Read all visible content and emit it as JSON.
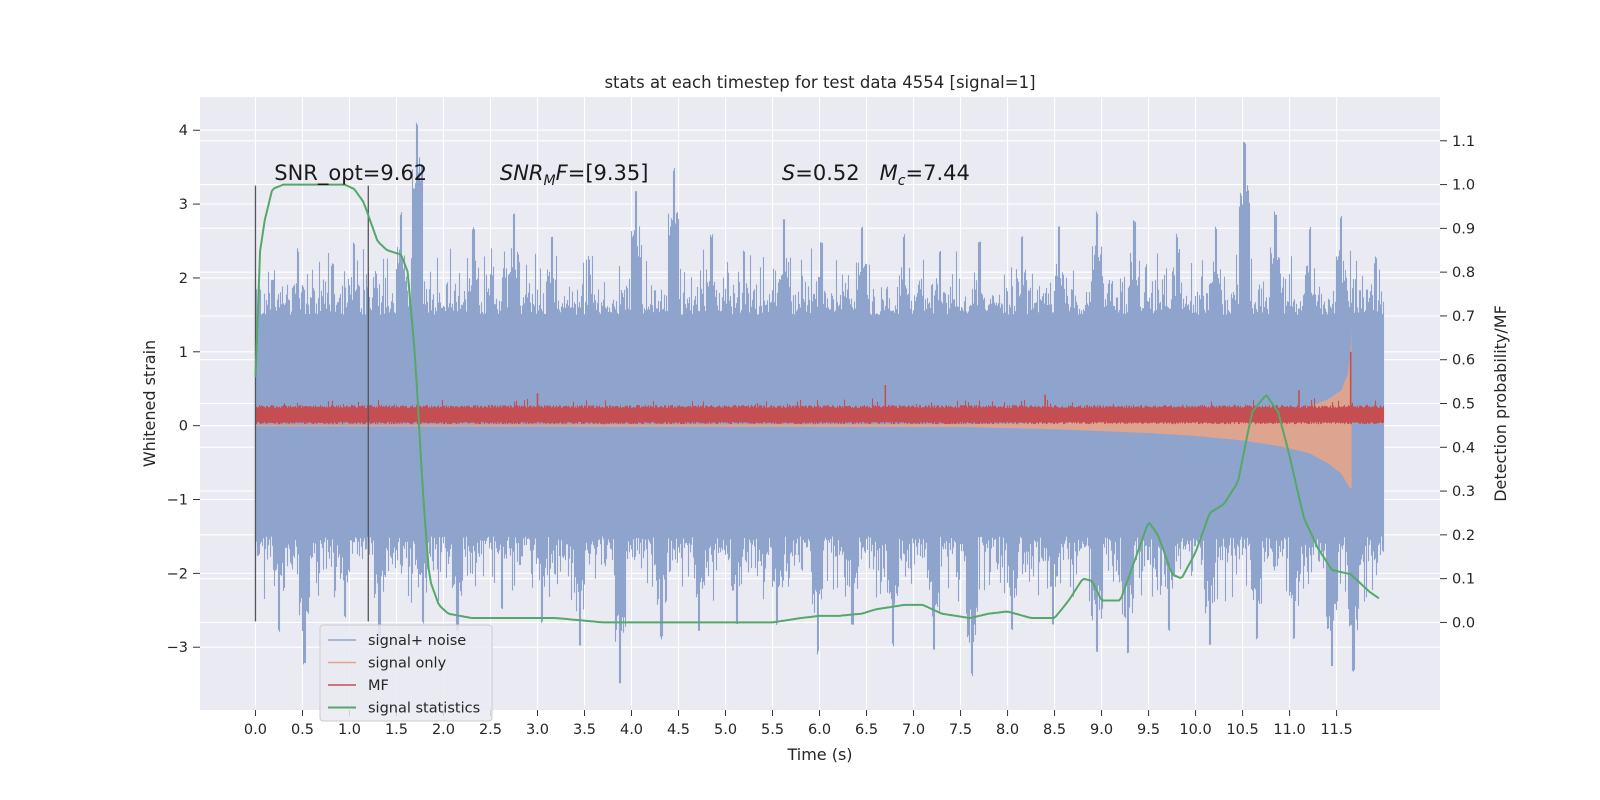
{
  "chart_data": {
    "type": "line",
    "title": "stats at each timestep for test data 4554 [signal=1]",
    "xlabel": "Time (s)",
    "ylabel": "Whitened strain",
    "ylabel_right": "Detection probability/MF",
    "xlim": [
      -0.59,
      12.6
    ],
    "ylim": [
      -3.85,
      4.45
    ],
    "ylim_right": [
      -0.2,
      1.2
    ],
    "x_ticks": [
      "0.0",
      "0.5",
      "1.0",
      "1.5",
      "2.0",
      "2.5",
      "3.0",
      "3.5",
      "4.0",
      "4.5",
      "5.0",
      "5.5",
      "6.0",
      "6.5",
      "7.0",
      "7.5",
      "8.0",
      "8.5",
      "9.0",
      "9.5",
      "10.0",
      "10.5",
      "11.0",
      "11.5"
    ],
    "x_tick_values": [
      0,
      0.5,
      1,
      1.5,
      2,
      2.5,
      3,
      3.5,
      4,
      4.5,
      5,
      5.5,
      6,
      6.5,
      7,
      7.5,
      8,
      8.5,
      9,
      9.5,
      10,
      10.5,
      11,
      11.5
    ],
    "y_ticks": [
      "−3",
      "−2",
      "−1",
      "0",
      "1",
      "2",
      "3",
      "4"
    ],
    "y_tick_values": [
      -3,
      -2,
      -1,
      0,
      1,
      2,
      3,
      4
    ],
    "y_ticks_right": [
      "0.0",
      "0.1",
      "0.2",
      "0.3",
      "0.4",
      "0.5",
      "0.6",
      "0.7",
      "0.8",
      "0.9",
      "1.0",
      "1.1"
    ],
    "y_tick_values_right": [
      0,
      0.1,
      0.2,
      0.3,
      0.4,
      0.5,
      0.6,
      0.7,
      0.8,
      0.9,
      1.0,
      1.1
    ],
    "grid": true,
    "legend_position": "lower-left",
    "annotations": [
      {
        "text": "SNR_opt=9.62",
        "x": 0.2,
        "y_right": 1.01
      },
      {
        "text": "SNR_MF=[9.35]",
        "x": 2.6,
        "y_right": 1.01
      },
      {
        "text": "S=0.52   M_c=7.44",
        "x": 5.6,
        "y_right": 1.01
      }
    ],
    "vlines": [
      {
        "x": 0.0,
        "y_range": [
          -2.65,
          3.25
        ]
      },
      {
        "x": 1.2,
        "y_range": [
          -2.65,
          3.25
        ]
      }
    ],
    "series": [
      {
        "name": "signal+ noise",
        "axis": "left",
        "color": "#8fa4cd",
        "x_range": [
          0,
          12.0
        ],
        "band_typical": [
          -1.5,
          1.5
        ],
        "peak_times": [
          0.18,
          0.45,
          0.82,
          1.05,
          1.28,
          1.55,
          1.72,
          2.32,
          2.75,
          3.15,
          3.55,
          4.05,
          4.45,
          4.85,
          5.2,
          5.62,
          6.02,
          6.45,
          6.9,
          7.28,
          7.7,
          8.15,
          8.55,
          8.95,
          9.35,
          9.8,
          10.22,
          10.52,
          10.85,
          11.22,
          11.55,
          11.92
        ],
        "peak_highs": [
          2.0,
          2.4,
          2.2,
          2.5,
          2.1,
          2.9,
          4.1,
          2.7,
          2.9,
          2.6,
          2.3,
          3.2,
          3.5,
          2.6,
          2.4,
          2.8,
          2.5,
          2.7,
          2.6,
          2.4,
          2.5,
          2.6,
          2.7,
          2.9,
          2.8,
          2.6,
          2.7,
          3.85,
          2.9,
          2.7,
          2.85,
          2.3
        ],
        "dip_times": [
          0.25,
          0.52,
          0.95,
          1.32,
          1.78,
          2.15,
          2.62,
          3.05,
          3.45,
          3.88,
          4.32,
          4.72,
          5.12,
          5.55,
          5.98,
          6.35,
          6.78,
          7.22,
          7.62,
          8.05,
          8.48,
          8.95,
          9.28,
          9.72,
          10.15,
          10.65,
          11.05,
          11.45,
          11.68
        ],
        "dip_lows": [
          -2.8,
          -3.25,
          -2.6,
          -2.9,
          -2.7,
          -2.8,
          -2.5,
          -2.7,
          -3.0,
          -3.5,
          -2.9,
          -2.8,
          -2.7,
          -2.7,
          -3.1,
          -2.7,
          -3.0,
          -3.05,
          -3.4,
          -2.8,
          -2.7,
          -3.1,
          -3.1,
          -2.8,
          -3.0,
          -2.9,
          -2.9,
          -3.3,
          -3.35
        ]
      },
      {
        "name": "signal only",
        "axis": "left",
        "color": "#e6a48a",
        "envelope": {
          "x": [
            0,
            7.6,
            8.5,
            9.5,
            10.0,
            10.5,
            10.9,
            11.2,
            11.4,
            11.55,
            11.62,
            11.65,
            11.66
          ],
          "upper": [
            0.01,
            0.02,
            0.04,
            0.08,
            0.11,
            0.15,
            0.2,
            0.26,
            0.35,
            0.48,
            0.7,
            1.05,
            1.3
          ],
          "lower": [
            -0.01,
            -0.02,
            -0.05,
            -0.1,
            -0.14,
            -0.2,
            -0.28,
            -0.37,
            -0.5,
            -0.65,
            -0.8,
            -0.85,
            -0.85
          ]
        }
      },
      {
        "name": "MF",
        "axis": "left",
        "color": "#c44e52",
        "x_range": [
          0,
          12.0
        ],
        "band": [
          0.05,
          0.24
        ],
        "spikes": [
          {
            "x": 3.0,
            "y": 0.44
          },
          {
            "x": 6.7,
            "y": 0.55
          },
          {
            "x": 8.4,
            "y": 0.42
          },
          {
            "x": 11.1,
            "y": 0.48
          },
          {
            "x": 11.65,
            "y": 1.0
          }
        ]
      },
      {
        "name": "signal statistics",
        "axis": "right",
        "color": "#55a868",
        "x": [
          0,
          0.05,
          0.1,
          0.18,
          0.3,
          0.5,
          0.7,
          0.85,
          0.95,
          1.05,
          1.15,
          1.3,
          1.4,
          1.55,
          1.62,
          1.7,
          1.78,
          1.85,
          1.95,
          2.05,
          2.3,
          2.8,
          3.2,
          3.7,
          4.0,
          4.5,
          5.0,
          5.5,
          5.8,
          6.0,
          6.2,
          6.45,
          6.6,
          6.9,
          7.1,
          7.3,
          7.6,
          7.8,
          8.0,
          8.25,
          8.5,
          8.65,
          8.8,
          8.9,
          9.0,
          9.2,
          9.35,
          9.5,
          9.6,
          9.75,
          9.85,
          10.0,
          10.15,
          10.3,
          10.45,
          10.6,
          10.75,
          10.88,
          11.0,
          11.15,
          11.3,
          11.45,
          11.65,
          11.85,
          11.95
        ],
        "y": [
          0.56,
          0.85,
          0.92,
          0.99,
          1.0,
          1.0,
          1.0,
          1.0,
          1.0,
          0.99,
          0.96,
          0.87,
          0.85,
          0.84,
          0.8,
          0.6,
          0.3,
          0.1,
          0.04,
          0.02,
          0.01,
          0.01,
          0.01,
          0.0,
          0.0,
          0.0,
          0.0,
          0.0,
          0.01,
          0.015,
          0.015,
          0.02,
          0.03,
          0.04,
          0.04,
          0.02,
          0.01,
          0.02,
          0.025,
          0.01,
          0.01,
          0.05,
          0.1,
          0.095,
          0.05,
          0.05,
          0.14,
          0.23,
          0.2,
          0.11,
          0.1,
          0.16,
          0.25,
          0.27,
          0.32,
          0.48,
          0.52,
          0.48,
          0.38,
          0.24,
          0.17,
          0.12,
          0.11,
          0.07,
          0.055
        ]
      }
    ]
  }
}
